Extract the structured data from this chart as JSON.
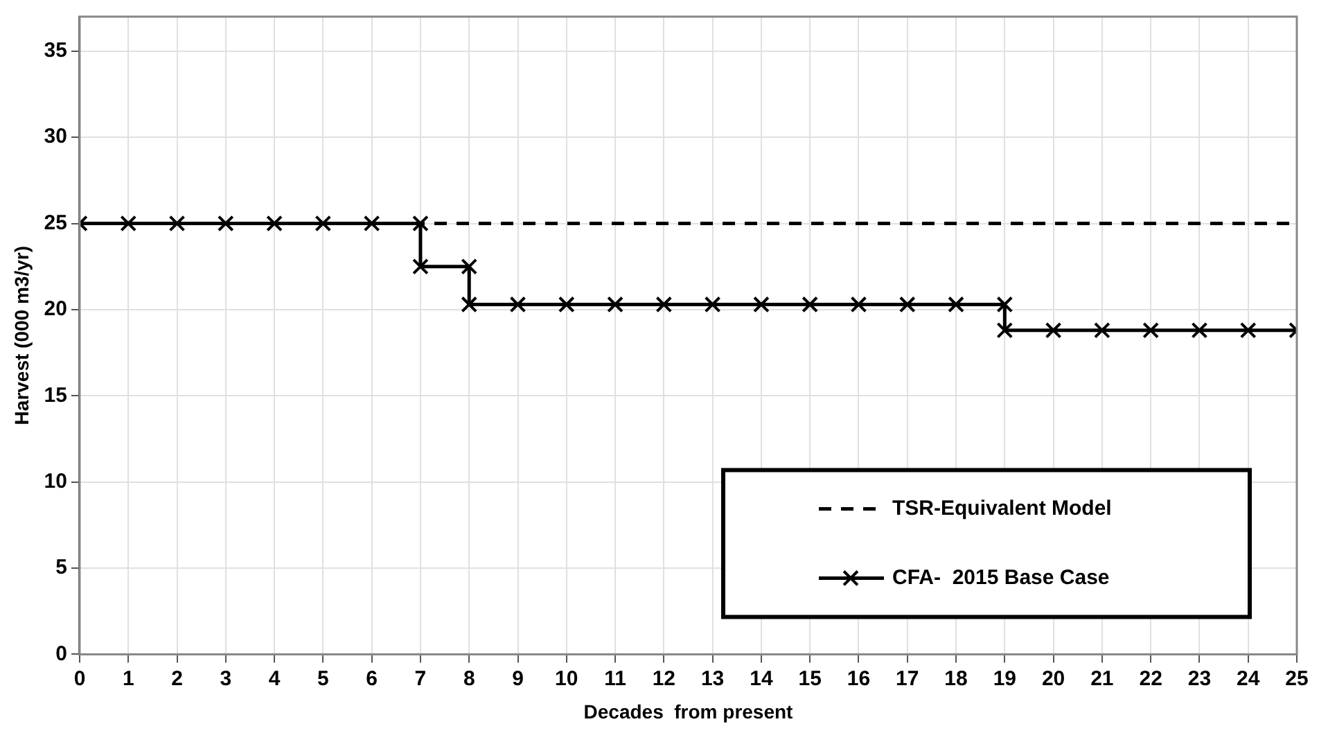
{
  "chart_data": {
    "type": "line",
    "xlabel": "Decades  from present",
    "ylabel": "Harvest (000 m3/yr)",
    "xlim": [
      0,
      25
    ],
    "xticks": [
      0,
      1,
      2,
      3,
      4,
      5,
      6,
      7,
      8,
      9,
      10,
      11,
      12,
      13,
      14,
      15,
      16,
      17,
      18,
      19,
      20,
      21,
      22,
      23,
      24,
      25
    ],
    "ylim": [
      0,
      37
    ],
    "yticks": [
      0,
      5,
      10,
      15,
      20,
      25,
      30,
      35
    ],
    "grid": true,
    "legend": "bottom right",
    "series": [
      {
        "name": "TSR-Equivalent Model",
        "color": "#000000",
        "line_style": "dashed",
        "x": [
          0,
          25
        ],
        "values": [
          25,
          25
        ]
      },
      {
        "name": "CFA-  2015 Base Case",
        "color": "#000000",
        "line_style": "solid",
        "marker": "cross",
        "x": [
          0,
          1,
          2,
          3,
          4,
          5,
          6,
          7,
          7,
          8,
          8,
          9,
          10,
          11,
          12,
          13,
          14,
          15,
          16,
          17,
          18,
          19,
          19,
          20,
          21,
          22,
          23,
          24,
          25
        ],
        "values": [
          25,
          25,
          25,
          25,
          25,
          25,
          25,
          25,
          22.5,
          22.5,
          20.3,
          20.3,
          20.3,
          20.3,
          20.3,
          20.3,
          20.3,
          20.3,
          20.3,
          20.3,
          20.3,
          20.3,
          18.8,
          18.8,
          18.8,
          18.8,
          18.8,
          18.8,
          18.8
        ]
      }
    ]
  }
}
